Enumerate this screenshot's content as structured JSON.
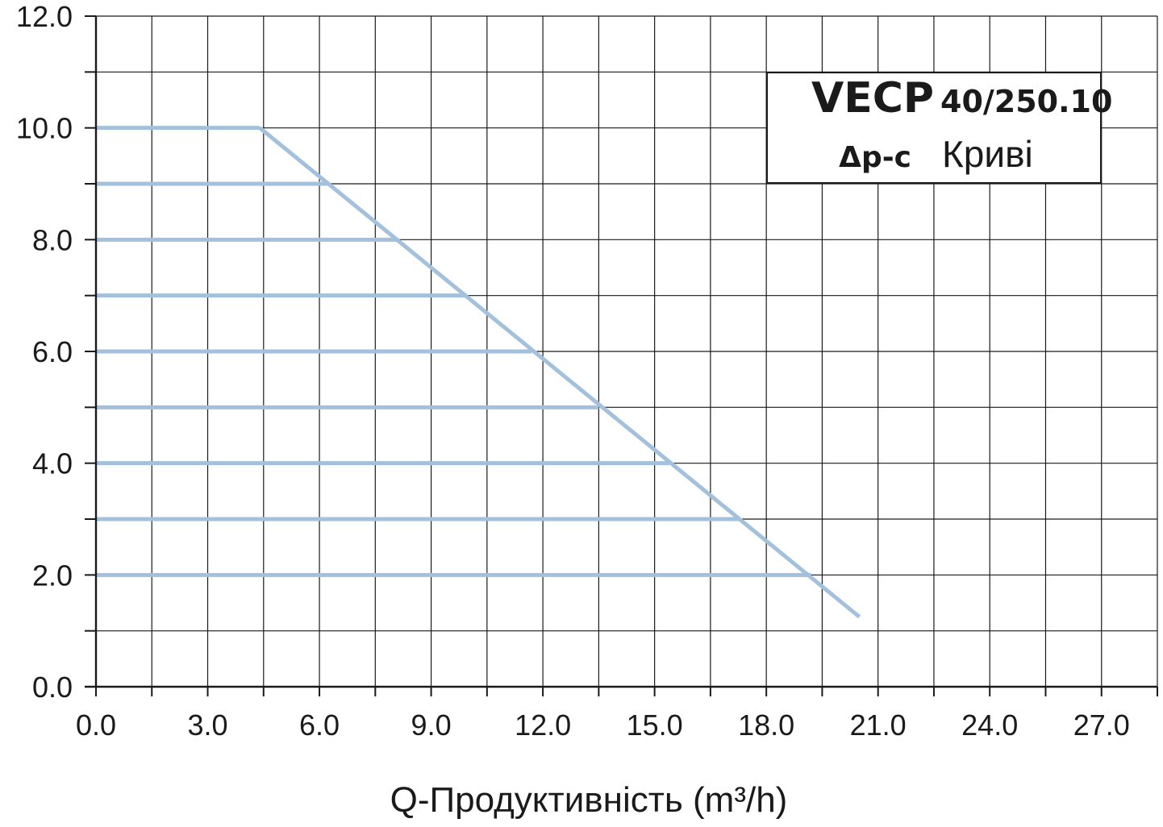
{
  "chart_data": {
    "type": "line",
    "title": "",
    "xlabel": "Q-Продуктивність (m³/h)",
    "ylabel": "",
    "xlim": [
      0,
      28.5
    ],
    "ylim": [
      0,
      12
    ],
    "grid": true,
    "x_tick_labels": [
      "0.0",
      "3.0",
      "6.0",
      "9.0",
      "12.0",
      "15.0",
      "18.0",
      "21.0",
      "24.0",
      "27.0"
    ],
    "x_ticks": [
      0,
      3,
      6,
      9,
      12,
      15,
      18,
      21,
      24,
      27
    ],
    "y_tick_labels": [
      "0.0",
      "2.0",
      "4.0",
      "6.0",
      "8.0",
      "10.0",
      "12.0"
    ],
    "y_ticks": [
      0,
      2,
      4,
      6,
      8,
      10,
      12
    ],
    "line_color": "#a3c1dc",
    "legend": {
      "model": "VECP",
      "size": "40/250.10",
      "mode": "Δp-c",
      "curves_label": "Криві"
    },
    "series": [
      {
        "values": [
          [
            0,
            10
          ],
          [
            4.4,
            10
          ]
        ]
      },
      {
        "values": [
          [
            0,
            9
          ],
          [
            6.2,
            9
          ]
        ]
      },
      {
        "values": [
          [
            0,
            8
          ],
          [
            8.1,
            8
          ]
        ]
      },
      {
        "values": [
          [
            0,
            7
          ],
          [
            9.9,
            7
          ]
        ]
      },
      {
        "values": [
          [
            0,
            6
          ],
          [
            11.7,
            6
          ]
        ]
      },
      {
        "values": [
          [
            0,
            5
          ],
          [
            13.5,
            5
          ]
        ]
      },
      {
        "values": [
          [
            0,
            4
          ],
          [
            15.4,
            4
          ]
        ]
      },
      {
        "values": [
          [
            0,
            3
          ],
          [
            17.3,
            3
          ]
        ]
      },
      {
        "values": [
          [
            0,
            2
          ],
          [
            19.2,
            2
          ]
        ]
      },
      {
        "values": [
          [
            4.4,
            10
          ],
          [
            20.5,
            1.25
          ]
        ]
      }
    ]
  }
}
